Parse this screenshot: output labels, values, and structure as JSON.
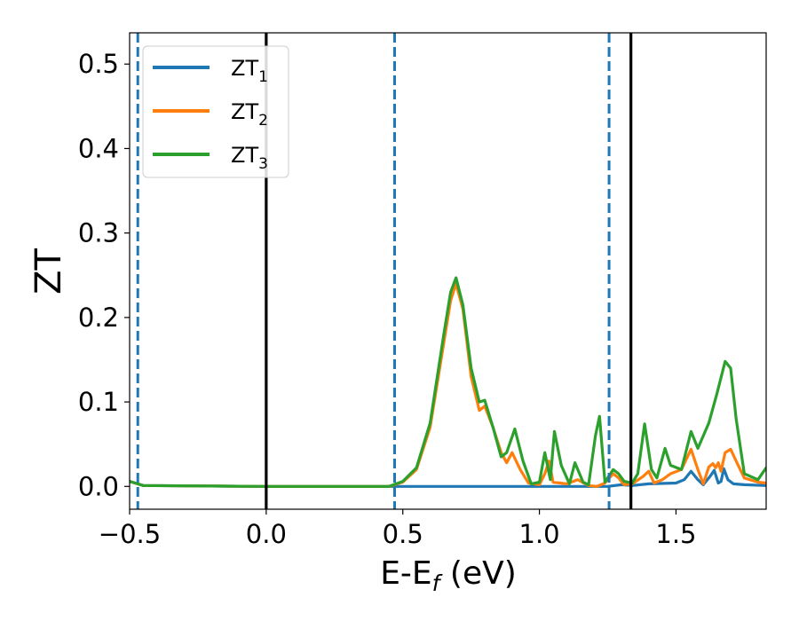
{
  "chart_data": {
    "type": "line",
    "title": "",
    "xlabel": {
      "main": "E-E",
      "sub": "f",
      "tail": " (eV)"
    },
    "ylabel": "ZT",
    "xlim": [
      -0.5,
      1.83
    ],
    "ylim": [
      -0.027,
      0.537
    ],
    "xticks": [
      -0.5,
      0.0,
      0.5,
      1.0,
      1.5
    ],
    "xtick_labels": [
      "−0.5",
      "0.0",
      "0.5",
      "1.0",
      "1.5"
    ],
    "yticks": [
      0.0,
      0.1,
      0.2,
      0.3,
      0.4,
      0.5
    ],
    "ytick_labels": [
      "0.0",
      "0.1",
      "0.2",
      "0.3",
      "0.4",
      "0.5"
    ],
    "grid": false,
    "legend_position": "top-left",
    "vertical_lines": [
      {
        "x": -0.47,
        "style": "dashed",
        "color": "#1f77b4"
      },
      {
        "x": 0.0,
        "style": "solid",
        "color": "#000000"
      },
      {
        "x": 0.47,
        "style": "dashed",
        "color": "#1f77b4"
      },
      {
        "x": 1.255,
        "style": "dashed",
        "color": "#1f77b4"
      },
      {
        "x": 1.335,
        "style": "solid",
        "color": "#000000"
      }
    ],
    "series": [
      {
        "name": "ZT",
        "sub": "1",
        "color": "#1f77b4",
        "x": [
          -0.5,
          -0.45,
          0.0,
          0.45,
          1.25,
          1.3,
          1.34,
          1.4,
          1.5,
          1.53,
          1.555,
          1.58,
          1.6,
          1.625,
          1.64,
          1.655,
          1.665,
          1.675,
          1.69,
          1.71,
          1.75,
          1.83
        ],
        "y": [
          0.006,
          0.001,
          0.0,
          0.0,
          0.0,
          0.002,
          0.001,
          0.003,
          0.004,
          0.008,
          0.018,
          0.008,
          0.002,
          0.012,
          0.019,
          0.004,
          0.006,
          0.021,
          0.008,
          0.003,
          0.002,
          0.001
        ]
      },
      {
        "name": "ZT",
        "sub": "2",
        "color": "#ff7f0e",
        "x": [
          -0.5,
          -0.45,
          0.0,
          0.45,
          0.5,
          0.55,
          0.6,
          0.65,
          0.675,
          0.695,
          0.72,
          0.75,
          0.78,
          0.8,
          0.83,
          0.86,
          0.88,
          0.9,
          0.93,
          0.96,
          1.0,
          1.02,
          1.035,
          1.05,
          1.1,
          1.14,
          1.18,
          1.21,
          1.24,
          1.27,
          1.29,
          1.31,
          1.34,
          1.38,
          1.4,
          1.42,
          1.45,
          1.48,
          1.52,
          1.555,
          1.58,
          1.6,
          1.62,
          1.635,
          1.645,
          1.655,
          1.665,
          1.68,
          1.7,
          1.72,
          1.75,
          1.8,
          1.83
        ],
        "y": [
          0.006,
          0.001,
          0.0,
          0.0,
          0.005,
          0.02,
          0.07,
          0.17,
          0.22,
          0.24,
          0.21,
          0.13,
          0.09,
          0.095,
          0.07,
          0.04,
          0.028,
          0.04,
          0.02,
          0.004,
          0.002,
          0.015,
          0.03,
          0.005,
          0.003,
          0.008,
          0.001,
          0.0,
          0.004,
          0.015,
          0.01,
          0.002,
          0.003,
          0.012,
          0.018,
          0.004,
          0.008,
          0.015,
          0.02,
          0.044,
          0.02,
          0.003,
          0.023,
          0.027,
          0.022,
          0.028,
          0.018,
          0.04,
          0.044,
          0.03,
          0.01,
          0.005,
          0.004
        ]
      },
      {
        "name": "ZT",
        "sub": "3",
        "color": "#2ca02c",
        "x": [
          -0.5,
          -0.45,
          0.0,
          0.45,
          0.5,
          0.55,
          0.6,
          0.65,
          0.675,
          0.695,
          0.72,
          0.75,
          0.78,
          0.8,
          0.83,
          0.86,
          0.88,
          0.91,
          0.94,
          0.97,
          1.0,
          1.02,
          1.04,
          1.055,
          1.08,
          1.11,
          1.13,
          1.16,
          1.18,
          1.205,
          1.22,
          1.24,
          1.27,
          1.29,
          1.31,
          1.34,
          1.36,
          1.385,
          1.41,
          1.43,
          1.46,
          1.48,
          1.52,
          1.555,
          1.58,
          1.62,
          1.65,
          1.68,
          1.7,
          1.72,
          1.75,
          1.8,
          1.83
        ],
        "y": [
          0.006,
          0.001,
          0.0,
          0.0,
          0.006,
          0.022,
          0.075,
          0.18,
          0.23,
          0.247,
          0.215,
          0.14,
          0.1,
          0.102,
          0.07,
          0.035,
          0.04,
          0.068,
          0.03,
          0.003,
          0.005,
          0.04,
          0.008,
          0.065,
          0.025,
          0.003,
          0.028,
          0.005,
          0.002,
          0.06,
          0.083,
          0.005,
          0.02,
          0.015,
          0.006,
          0.004,
          0.015,
          0.074,
          0.02,
          0.01,
          0.045,
          0.025,
          0.02,
          0.065,
          0.045,
          0.075,
          0.11,
          0.148,
          0.14,
          0.08,
          0.015,
          0.008,
          0.022
        ]
      }
    ]
  }
}
